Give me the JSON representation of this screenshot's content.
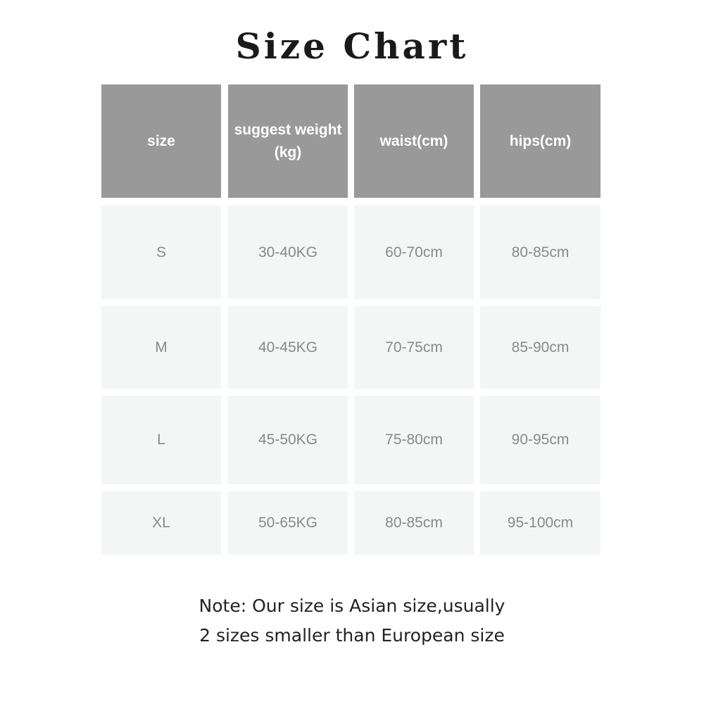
{
  "title": "Size Chart",
  "colors": {
    "header_bg": "#999999",
    "cell_bg": "#f4f5f5",
    "cell_text": "#8a8a8a"
  },
  "table": {
    "headers": [
      "size",
      "suggest weight\n(kg)",
      "waist(cm)",
      "hips(cm)"
    ],
    "rows": [
      [
        "S",
        "30-40KG",
        "60-70cm",
        "80-85cm"
      ],
      [
        "M",
        "40-45KG",
        "70-75cm",
        "85-90cm"
      ],
      [
        "L",
        "45-50KG",
        "75-80cm",
        "90-95cm"
      ],
      [
        "XL",
        "50-65KG",
        "80-85cm",
        "95-100cm"
      ]
    ]
  },
  "note": {
    "line1": "Note: Our size is Asian size,usually",
    "line2": "2 sizes smaller than European size"
  }
}
